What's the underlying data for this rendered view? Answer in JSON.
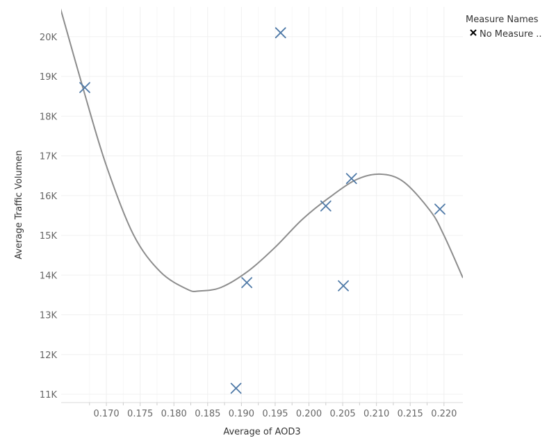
{
  "chart_data": {
    "type": "scatter",
    "title": "",
    "xlabel": "Average of AOD3",
    "ylabel": "Average Traffic Volumen",
    "xlim": [
      0.1633,
      0.2228
    ],
    "ylim": [
      10790,
      20750
    ],
    "x_ticks": [
      0.17,
      0.175,
      0.18,
      0.185,
      0.19,
      0.195,
      0.2,
      0.205,
      0.21,
      0.215,
      0.22
    ],
    "x_tick_labels": [
      "0.170",
      "0.175",
      "0.180",
      "0.185",
      "0.190",
      "0.195",
      "0.200",
      "0.205",
      "0.210",
      "0.215",
      "0.220"
    ],
    "y_ticks": [
      11000,
      12000,
      13000,
      14000,
      15000,
      16000,
      17000,
      18000,
      19000,
      20000
    ],
    "y_tick_labels": [
      "11K",
      "12K",
      "13K",
      "14K",
      "15K",
      "16K",
      "17K",
      "18K",
      "19K",
      "20K"
    ],
    "grid": true,
    "legend": {
      "title": "Measure Names",
      "placement": "top-right",
      "entries": [
        {
          "label": "No Measure ..",
          "marker": "x"
        }
      ]
    },
    "marker_color": "#4e79a7",
    "trend_color": "#8c8c8c",
    "points": [
      {
        "x": 0.1668,
        "y": 18720
      },
      {
        "x": 0.1892,
        "y": 11150
      },
      {
        "x": 0.1908,
        "y": 13810
      },
      {
        "x": 0.1958,
        "y": 20100
      },
      {
        "x": 0.2025,
        "y": 15740
      },
      {
        "x": 0.2051,
        "y": 13730
      },
      {
        "x": 0.2063,
        "y": 16430
      },
      {
        "x": 0.2194,
        "y": 15660
      }
    ],
    "trend_line": {
      "type": "polynomial",
      "degree": 3,
      "samples": [
        {
          "x": 0.1632,
          "y": 20710
        },
        {
          "x": 0.1668,
          "y": 18550
        },
        {
          "x": 0.17,
          "y": 16750
        },
        {
          "x": 0.174,
          "y": 15020
        },
        {
          "x": 0.178,
          "y": 14080
        },
        {
          "x": 0.182,
          "y": 13640
        },
        {
          "x": 0.1838,
          "y": 13600
        },
        {
          "x": 0.187,
          "y": 13690
        },
        {
          "x": 0.191,
          "y": 14100
        },
        {
          "x": 0.195,
          "y": 14700
        },
        {
          "x": 0.199,
          "y": 15400
        },
        {
          "x": 0.203,
          "y": 15950
        },
        {
          "x": 0.207,
          "y": 16400
        },
        {
          "x": 0.2105,
          "y": 16540
        },
        {
          "x": 0.214,
          "y": 16350
        },
        {
          "x": 0.218,
          "y": 15610
        },
        {
          "x": 0.22,
          "y": 15000
        },
        {
          "x": 0.2228,
          "y": 13930
        }
      ]
    }
  }
}
